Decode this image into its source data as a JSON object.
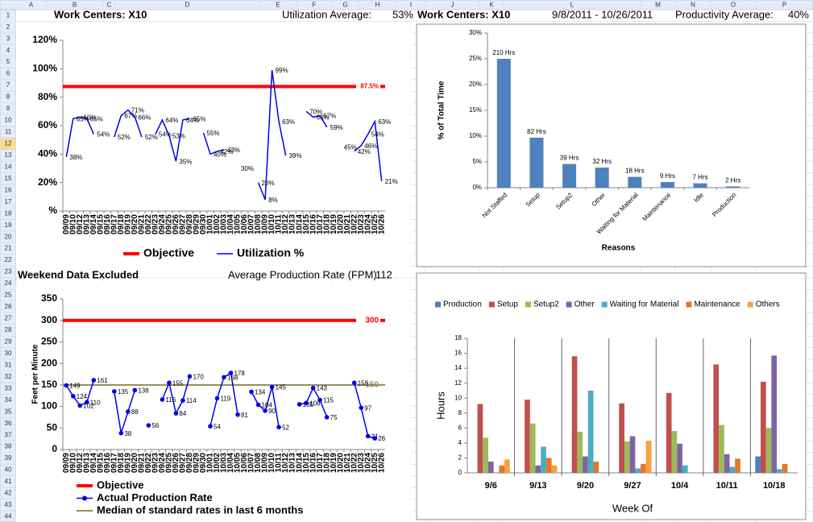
{
  "sheet": {
    "columns": [
      "A",
      "B",
      "C",
      "D",
      "E",
      "F",
      "G",
      "H",
      "I",
      "J",
      "K",
      "L",
      "M",
      "N",
      "O",
      "P"
    ],
    "rows": [
      1,
      2,
      3,
      4,
      5,
      6,
      7,
      8,
      9,
      10,
      11,
      12,
      13,
      14,
      15,
      16,
      17,
      18,
      19,
      20,
      21,
      22,
      23,
      24,
      25,
      26,
      27,
      28,
      29,
      30,
      31,
      32,
      33,
      34,
      35,
      36,
      37,
      38,
      39,
      40,
      41,
      42,
      43,
      44
    ]
  },
  "header": {
    "left_title": "Work Centers: X10",
    "utilization_label": "Utilization Average:",
    "utilization_value": "53%",
    "right_title": "Work Centers: X10",
    "date_range": "9/8/2011 - 10/26/2011",
    "productivity_label": "Productivity Average:",
    "productivity_value": "40%",
    "weekend_note": "Weekend Data Excluded",
    "rate_label": "Average Production Rate (FPM):",
    "rate_value": "112"
  },
  "chart_data": [
    {
      "type": "line",
      "categories": [
        "09/09",
        "09/10",
        "09/12",
        "09/13",
        "09/14",
        "09/15",
        "09/16",
        "09/17",
        "09/18",
        "09/19",
        "09/20",
        "09/21",
        "09/22",
        "09/23",
        "09/24",
        "09/25",
        "09/26",
        "09/27",
        "09/28",
        "09/29",
        "09/30",
        "10/01",
        "10/02",
        "10/03",
        "10/04",
        "10/05",
        "10/06",
        "10/07",
        "10/08",
        "10/09",
        "10/10",
        "10/11",
        "10/12",
        "10/13",
        "10/14",
        "10/15",
        "10/16",
        "10/17",
        "10/18",
        "10/19",
        "10/20",
        "10/21",
        "10/22",
        "10/23",
        "10/24",
        "10/25",
        "10/26"
      ],
      "reference_lines": [
        {
          "name": "Objective",
          "value": 87.5,
          "label": "87.5%",
          "color": "#ff0000"
        }
      ],
      "series": [
        {
          "name": "Utilization %",
          "color": "#0000ee",
          "values": [
            38,
            65,
            66,
            65,
            54,
            null,
            null,
            52,
            67,
            71,
            66,
            52,
            null,
            54,
            64,
            53,
            35,
            64,
            65,
            null,
            55,
            40,
            42,
            43,
            null,
            30,
            null,
            null,
            20,
            8,
            99,
            63,
            39,
            null,
            null,
            70,
            66,
            67,
            59,
            null,
            45,
            null,
            42,
            46,
            54,
            63,
            21
          ],
          "value_labels": [
            "38%",
            "65%",
            "66%",
            "65%",
            "54%",
            null,
            null,
            "52%",
            "67%",
            "71%",
            "66%",
            "52%",
            null,
            "54%",
            "64%",
            "53%",
            "35%",
            "64%",
            "65%",
            null,
            "55%",
            "40%",
            "42%",
            "43%",
            null,
            "30%",
            null,
            null,
            "20%",
            "8%",
            "99%",
            "63%",
            "39%",
            null,
            null,
            "70%",
            "66%",
            "67%",
            "59%",
            null,
            "45%",
            null,
            "42%",
            "46%",
            "54%",
            "63%",
            "21%"
          ]
        }
      ],
      "ylim": [
        0,
        120
      ],
      "yticks": [
        {
          "value": 0,
          "label": "%"
        },
        {
          "value": 20,
          "label": "20%"
        },
        {
          "value": 40,
          "label": "40%"
        },
        {
          "value": 60,
          "label": "60%"
        },
        {
          "value": 80,
          "label": "80%"
        },
        {
          "value": 100,
          "label": "100%"
        },
        {
          "value": 120,
          "label": "120%"
        }
      ],
      "markers": false,
      "grid": false
    },
    {
      "type": "bar",
      "y_label": "% of Total Time",
      "x_label": "Reasons",
      "categories": [
        "Not Staffed",
        "Setup",
        "Setup2",
        "Other",
        "Waiting for Material",
        "Maintenance",
        "Idle",
        "Production"
      ],
      "values": [
        25,
        9.7,
        4.6,
        3.9,
        2.1,
        1.1,
        0.85,
        0.25
      ],
      "value_labels": [
        "210 Hrs",
        "82 Hrs",
        "39 Hrs",
        "32 Hrs",
        "18 Hrs",
        "9 Hrs",
        "7 Hrs",
        "2 Hrs"
      ],
      "color": "#4f81bd",
      "ylim": [
        0,
        30
      ],
      "yticks": [
        {
          "value": 0,
          "label": "0%"
        },
        {
          "value": 5,
          "label": "5%"
        },
        {
          "value": 10,
          "label": "10%"
        },
        {
          "value": 15,
          "label": "15%"
        },
        {
          "value": 20,
          "label": "20%"
        },
        {
          "value": 25,
          "label": "25%"
        },
        {
          "value": 30,
          "label": "30%"
        }
      ],
      "grid": false
    },
    {
      "type": "line",
      "y_label": "Feet per Minute",
      "categories": [
        "09/09",
        "09/10",
        "09/12",
        "09/13",
        "09/14",
        "09/15",
        "09/16",
        "09/17",
        "09/18",
        "09/19",
        "09/20",
        "09/21",
        "09/22",
        "09/23",
        "09/24",
        "09/25",
        "09/26",
        "09/27",
        "09/28",
        "09/29",
        "09/30",
        "10/01",
        "10/02",
        "10/03",
        "10/04",
        "10/05",
        "10/06",
        "10/07",
        "10/08",
        "10/09",
        "10/10",
        "10/11",
        "10/12",
        "10/13",
        "10/14",
        "10/15",
        "10/16",
        "10/17",
        "10/18",
        "10/19",
        "10/20",
        "10/21",
        "10/22",
        "10/23",
        "10/24",
        "10/25",
        "10/26"
      ],
      "reference_lines": [
        {
          "name": "Objective",
          "value": 300,
          "color": "#ff0000"
        },
        {
          "name": "Median of standard rates in last 6 months",
          "value": 150,
          "color": "#948a54"
        }
      ],
      "series": [
        {
          "name": "Actual Production Rate",
          "color": "#0000ee",
          "values": [
            149,
            124,
            102,
            110,
            161,
            null,
            null,
            135,
            38,
            88,
            138,
            null,
            56,
            null,
            116,
            155,
            84,
            114,
            170,
            null,
            null,
            54,
            119,
            168,
            178,
            81,
            null,
            134,
            104,
            90,
            145,
            52,
            null,
            null,
            105,
            108,
            143,
            115,
            75,
            null,
            null,
            null,
            155,
            97,
            31,
            26,
            null
          ]
        }
      ],
      "ylim": [
        0,
        350
      ],
      "yticks": [
        0,
        50,
        100,
        150,
        200,
        250,
        300,
        350
      ],
      "markers": true,
      "grid": false
    },
    {
      "type": "bar",
      "y_label": "Hours",
      "x_label": "Week Of",
      "categories": [
        "9/6",
        "9/13",
        "9/20",
        "9/27",
        "10/4",
        "10/11",
        "10/18"
      ],
      "series": [
        {
          "name": "Production",
          "color": "#4f81bd",
          "values": [
            0,
            0,
            0,
            0,
            0,
            0,
            2.2
          ]
        },
        {
          "name": "Setup",
          "color": "#c0504d",
          "values": [
            9.2,
            9.8,
            15.6,
            9.3,
            10.7,
            14.5,
            12.2
          ]
        },
        {
          "name": "Setup2",
          "color": "#9bbb59",
          "values": [
            4.7,
            6.6,
            5.5,
            4.2,
            5.6,
            6.4,
            6.0
          ]
        },
        {
          "name": "Other",
          "color": "#8064a2",
          "values": [
            1.5,
            1.0,
            2.2,
            4.9,
            3.9,
            2.5,
            15.7
          ]
        },
        {
          "name": "Waiting for Material",
          "color": "#4bacc6",
          "values": [
            0,
            3.5,
            11.0,
            0.6,
            1.0,
            0.8,
            0.5
          ]
        },
        {
          "name": "Maintenance",
          "color": "#e2772e",
          "values": [
            1.0,
            2.0,
            1.5,
            1.2,
            0,
            1.9,
            1.2
          ]
        },
        {
          "name": "Others",
          "color": "#f9a13b",
          "values": [
            1.8,
            1.0,
            0,
            4.3,
            0,
            0,
            0
          ]
        }
      ],
      "ylim": [
        0,
        18
      ],
      "yticks": [
        0,
        2,
        4,
        6,
        8,
        10,
        12,
        14,
        16,
        18
      ],
      "legend": "top",
      "grid": false
    }
  ]
}
